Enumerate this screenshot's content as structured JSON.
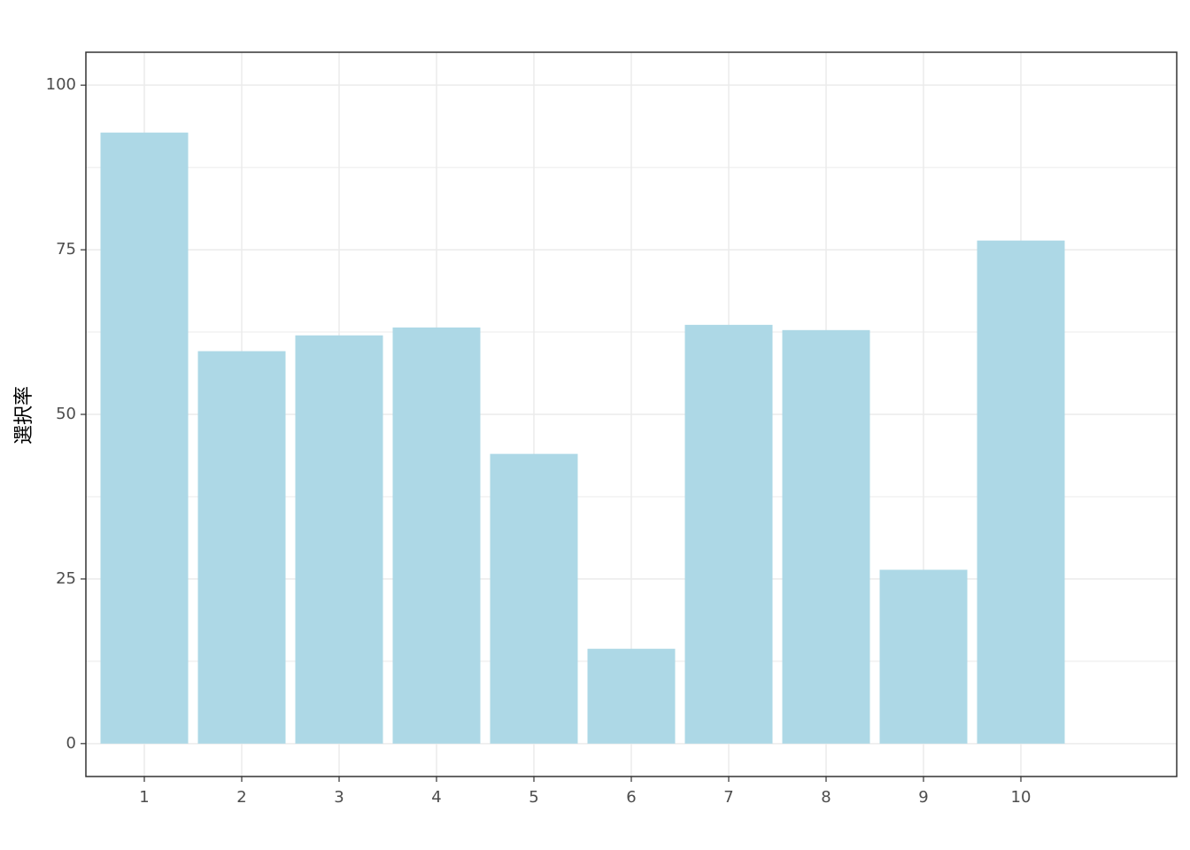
{
  "chart_data": {
    "type": "bar",
    "y_label": "選択率",
    "categories": [
      "1",
      "2",
      "3",
      "4",
      "5",
      "6",
      "7",
      "8",
      "9",
      "10"
    ],
    "values": [
      92.8,
      59.6,
      62.0,
      63.2,
      44.0,
      14.4,
      63.6,
      62.8,
      26.4,
      76.4
    ],
    "color": "#add8e6",
    "ylim": [
      -5,
      105
    ],
    "yticks": [
      0,
      25,
      50,
      75,
      100
    ],
    "grid": true
  }
}
